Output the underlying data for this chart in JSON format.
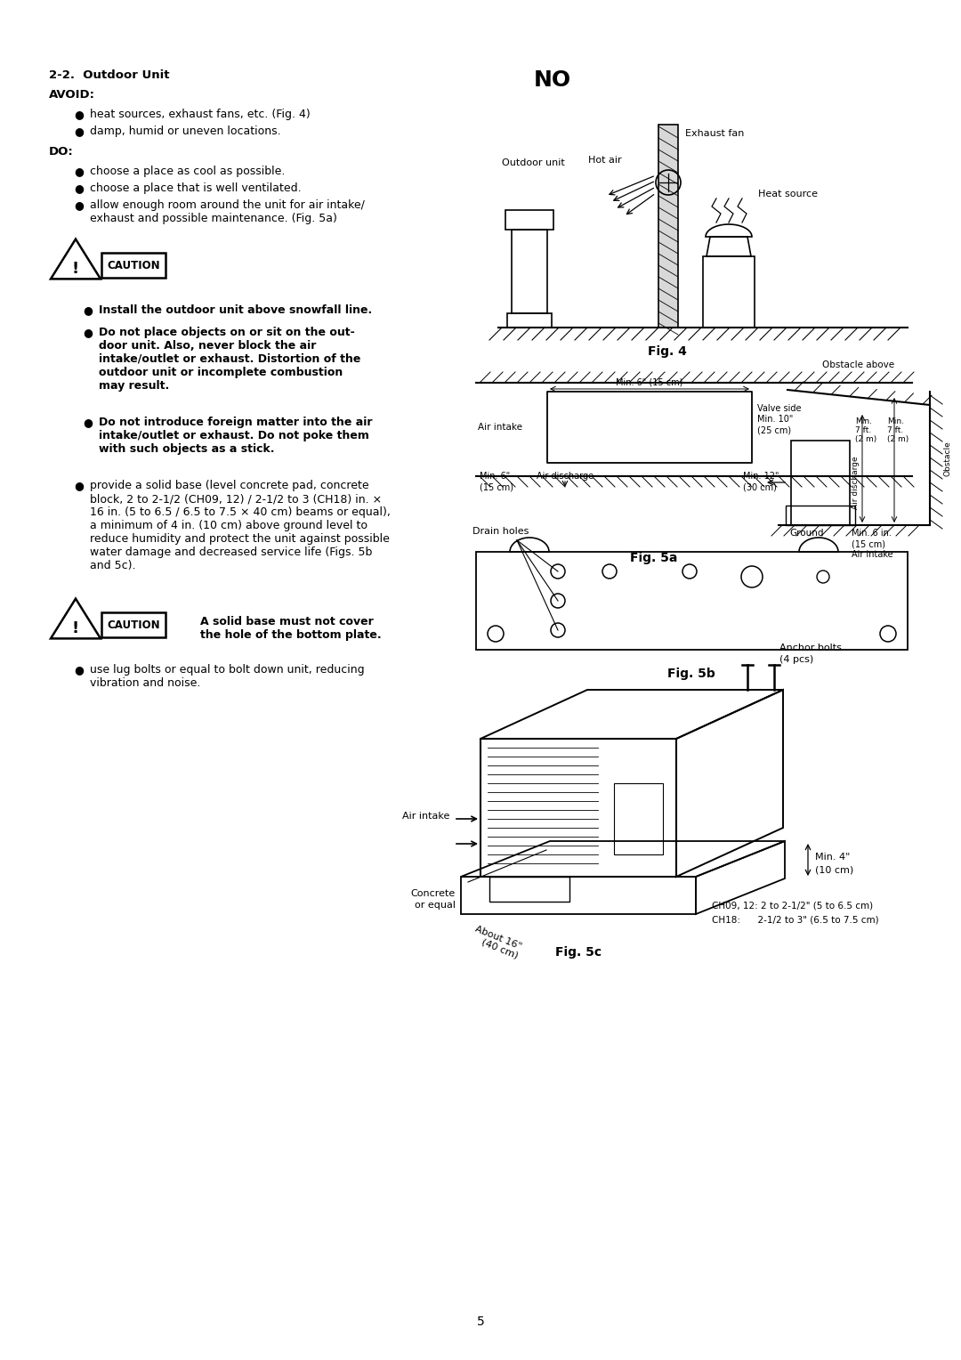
{
  "page_width": 10.8,
  "page_height": 15.28,
  "bg_color": "#ffffff",
  "text_color": "#000000",
  "title": "2-2.  Outdoor Unit",
  "avoid_label": "AVOID:",
  "avoid_bullets": [
    "heat sources, exhaust fans, etc. (Fig. 4)",
    "damp, humid or uneven locations."
  ],
  "do_label": "DO:",
  "do_bullets": [
    "choose a place as cool as possible.",
    "choose a place that is well ventilated.",
    "allow enough room around the unit for air intake/\nexhaust and possible maintenance. (Fig. 5a)"
  ],
  "caution_bullets_bold": [
    "Install the outdoor unit above snowfall line.",
    "Do not place objects on or sit on the out-\ndoor unit. Also, never block the air\nintake/outlet or exhaust. Distortion of the\noutdoor unit or incomplete combustion\nmay result.",
    "Do not introduce foreign matter into the air\nintake/outlet or exhaust. Do not poke them\nwith such objects as a stick."
  ],
  "regular_bullet1": "provide a solid base (level concrete pad, concrete\nblock, 2 to 2-1/2 (CH09, 12) / 2-1/2 to 3 (CH18) in. ×\n16 in. (5 to 6.5 / 6.5 to 7.5 × 40 cm) beams or equal),\na minimum of 4 in. (10 cm) above ground level to\nreduce humidity and protect the unit against possible\nwater damage and decreased service life (Figs. 5b\nand 5c).",
  "caution2_text": "A solid base must not cover\nthe hole of the bottom plate.",
  "regular_bullet2": "use lug bolts or equal to bolt down unit, reducing\nvibration and noise.",
  "page_number": "5",
  "fig4_label": "Fig. 4",
  "fig5a_label": "Fig. 5a",
  "fig5b_label": "Fig. 5b",
  "fig5c_label": "Fig. 5c"
}
